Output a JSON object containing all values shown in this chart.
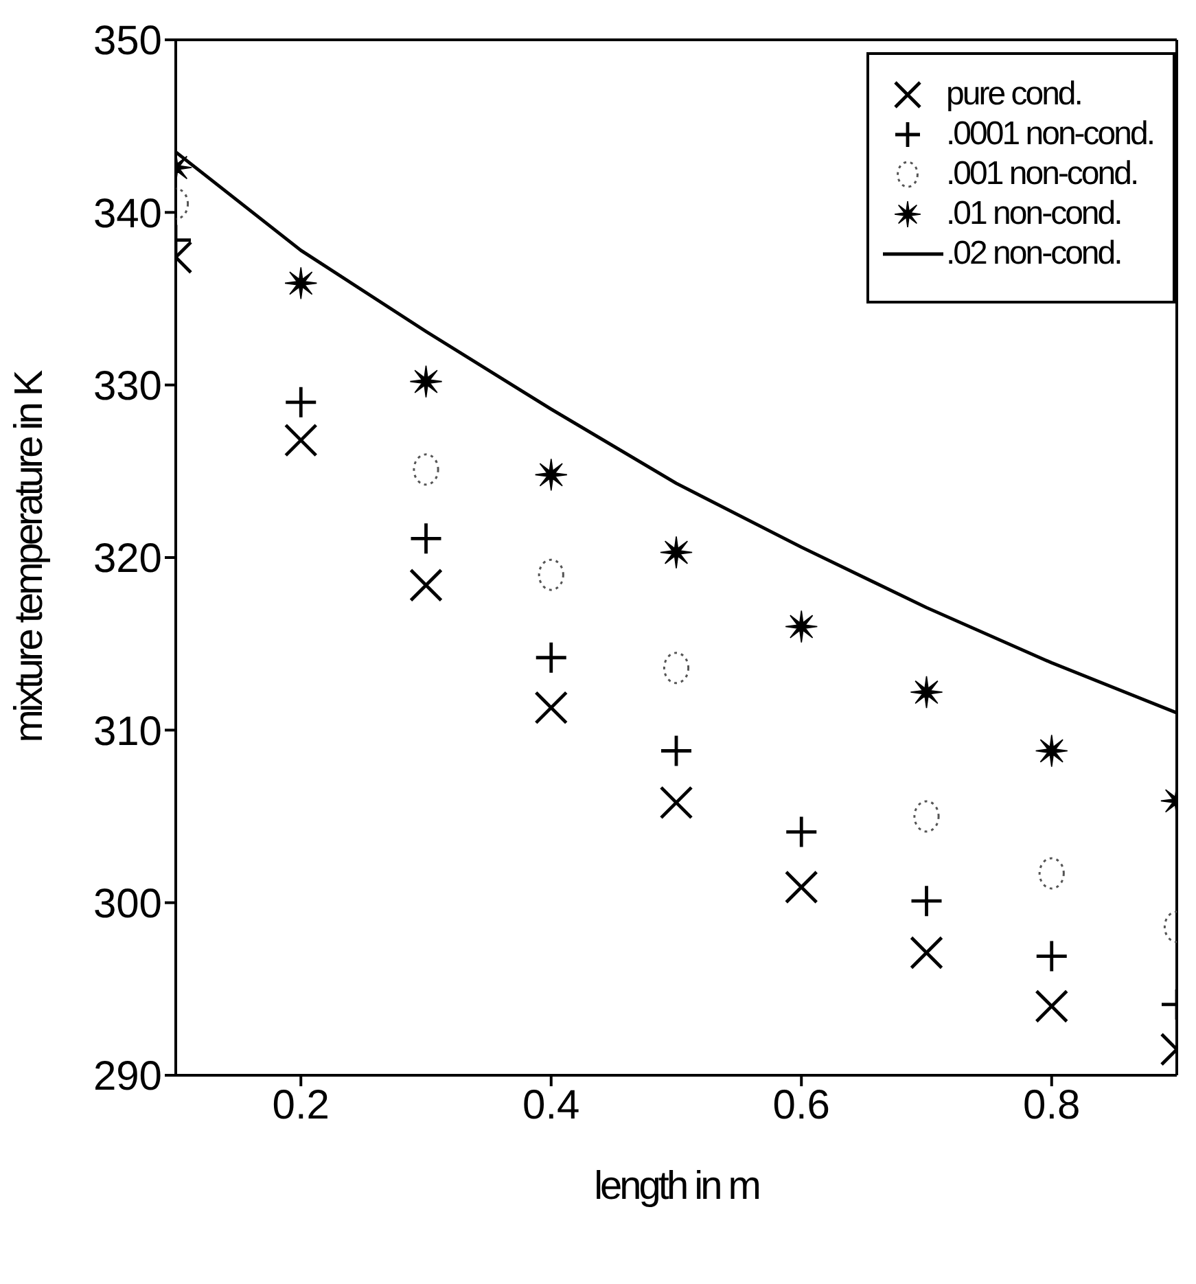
{
  "chart_data": {
    "type": "scatter",
    "xlabel": "length in m",
    "ylabel": "mixture temperature in K",
    "x": [
      0.1,
      0.2,
      0.3,
      0.4,
      0.5,
      0.6,
      0.7,
      0.8,
      0.9
    ],
    "series": [
      {
        "name": "pure cond.",
        "color": "#000000",
        "values": [
          337.4,
          326.8,
          318.4,
          311.3,
          305.8,
          300.9,
          297.1,
          294.0,
          291.5
        ]
      },
      {
        "name": ".0001 non-cond.",
        "color": "#000000",
        "marker": "cross",
        "values": [
          338.4,
          329.0,
          321.1,
          314.2,
          308.8,
          304.1,
          300.1,
          296.9,
          294.1
        ]
      },
      {
        "name": ".001 non-cond.",
        "color": "#555555",
        "marker": "circle",
        "line_style": "dotted",
        "values": [
          340.5,
          null,
          325.1,
          319.0,
          313.6,
          null,
          305.0,
          301.7,
          298.6
        ]
      },
      {
        "name": ".01 non-cond.",
        "color": "#000000",
        "marker": "star",
        "values": [
          342.6,
          335.9,
          330.2,
          324.8,
          320.3,
          316.0,
          312.2,
          308.8,
          305.9
        ]
      },
      {
        "name": ".02 non-cond.",
        "color": "#000000",
        "type": "line",
        "marker": "none",
        "line_style": "solid",
        "values": [
          343.5,
          337.8,
          333.1,
          328.6,
          324.3,
          320.6,
          317.1,
          313.9,
          311.0
        ]
      }
    ],
    "xlim": [
      0.1,
      0.9
    ],
    "xticks": [
      0.2,
      0.4,
      0.6,
      0.8
    ],
    "ylim": [
      290,
      350
    ],
    "yticks": [
      290,
      300,
      310,
      320,
      330,
      340,
      350
    ],
    "grid": false,
    "legend": "top right"
  }
}
